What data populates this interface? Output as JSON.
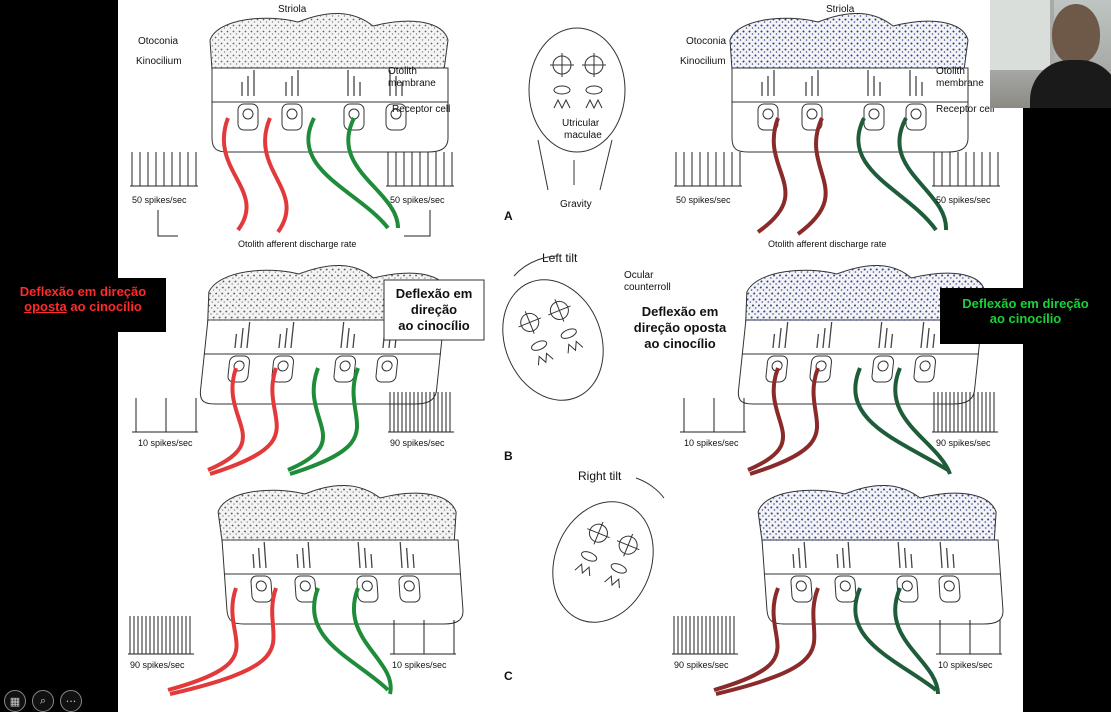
{
  "labels": {
    "striola": "Striola",
    "otoconia": "Otoconia",
    "kinocilium": "Kinocilium",
    "otolith_membrane_1": "Otolith",
    "otolith_membrane_2": "membrane",
    "receptor_cell": "Receptor cell",
    "afferent_rate": "Otolith afferent discharge rate",
    "utricular_1": "Utricular",
    "utricular_2": "maculae",
    "gravity": "Gravity",
    "left_tilt": "Left tilt",
    "right_tilt": "Right tilt",
    "ocular_1": "Ocular",
    "ocular_2": "counterroll",
    "letter_a": "A",
    "letter_b": "B",
    "letter_c": "C"
  },
  "rates": {
    "a_left": "50 spikes/sec",
    "a_right": "50 spikes/sec",
    "b_left": "10 spikes/sec",
    "b_right": "90 spikes/sec",
    "c_left": "90 spikes/sec",
    "c_right": "10 spikes/sec"
  },
  "callouts": {
    "left_red_1": "Deflexão em direção",
    "left_red_2a": "oposta",
    "left_red_2b": " ao cinocílio",
    "box_1": "Deflexão em",
    "box_2": "direção",
    "box_3": "ao cinocílio",
    "mid_1": "Deflexão em",
    "mid_2": "direção oposta",
    "mid_3": "ao cinocílio",
    "right_green_1": "Deflexão em direção",
    "right_green_2": "ao cinocílio"
  },
  "toolbar": {
    "icons": [
      "grid-icon",
      "zoom-icon",
      "more-icon"
    ]
  },
  "colors": {
    "red": "#e23a3a",
    "green": "#1f8c3a",
    "blue_otoconia": "#2b3a8c"
  }
}
